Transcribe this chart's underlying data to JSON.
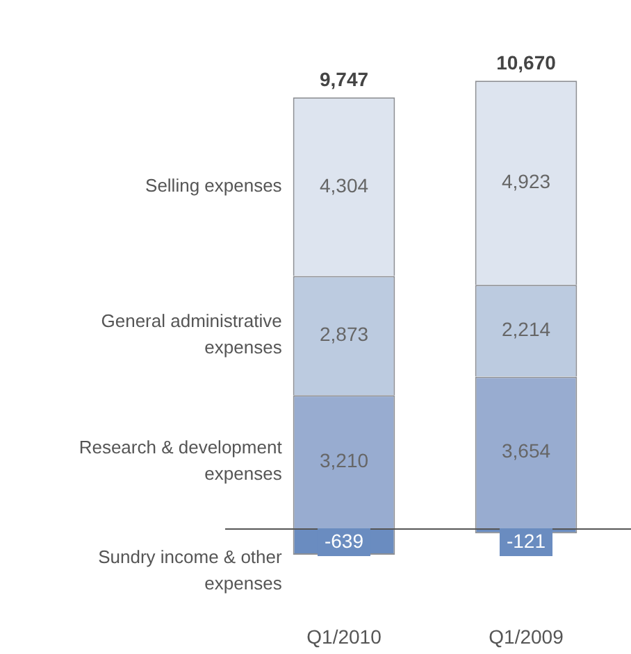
{
  "chart_data": {
    "type": "bar",
    "stacked": true,
    "categories": [
      "Q1/2010",
      "Q1/2009"
    ],
    "series": [
      {
        "name": "Research & development expenses",
        "color": "#98acd0",
        "values": [
          3210,
          3654
        ],
        "value_labels": [
          "3,210",
          "3,654"
        ]
      },
      {
        "name": "General administrative expenses",
        "color": "#bccbe0",
        "values": [
          2873,
          2214
        ],
        "value_labels": [
          "2,873",
          "2,214"
        ]
      },
      {
        "name": "Selling expenses",
        "color": "#dde4ef",
        "values": [
          4304,
          4923
        ],
        "value_labels": [
          "4,304",
          "4,923"
        ]
      },
      {
        "name": "Sundry income & other expenses",
        "color": "#6a8cc0",
        "values": [
          -639,
          -121
        ],
        "value_labels": [
          "-639",
          "-121"
        ]
      }
    ],
    "totals": [
      "9,747",
      "10,670"
    ],
    "legend": false,
    "grid": false,
    "tick_labels": "x"
  }
}
